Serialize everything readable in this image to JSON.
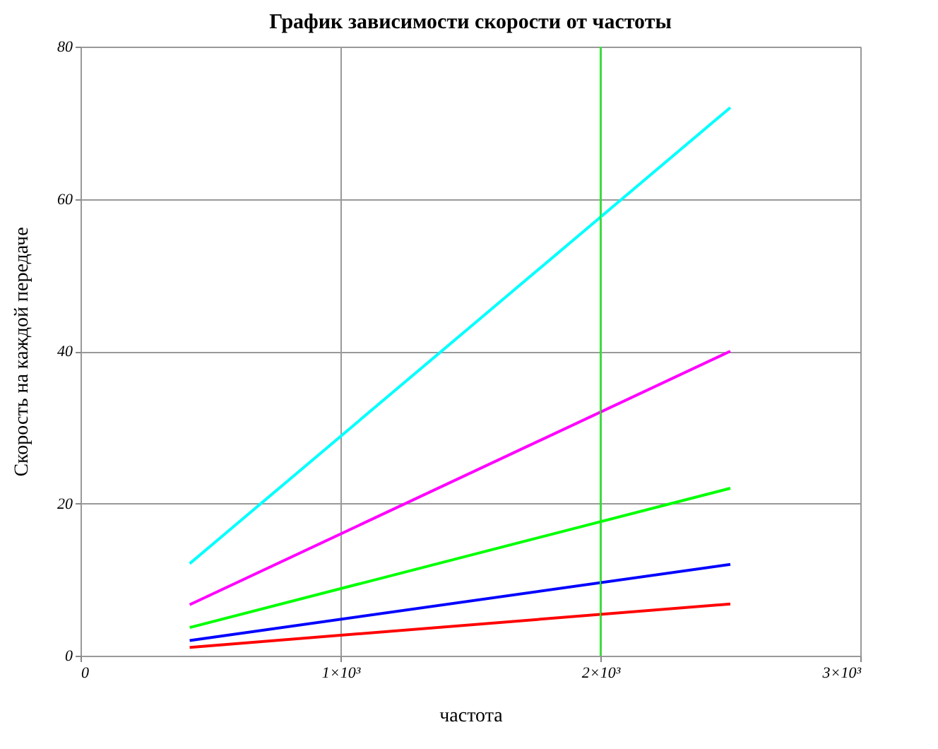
{
  "chart_data": {
    "type": "line",
    "title": "График зависимости скорости от частоты",
    "xlabel": "частота",
    "ylabel": "Скорость на каждой передаче",
    "x": [
      420,
      2500
    ],
    "series": [
      {
        "color": "#00ffff",
        "values": [
          12.1,
          72
        ]
      },
      {
        "color": "#ff00ff",
        "values": [
          6.7,
          40
        ]
      },
      {
        "color": "#00ff00",
        "values": [
          3.7,
          22
        ]
      },
      {
        "color": "#0000ff",
        "values": [
          2.0,
          12
        ]
      },
      {
        "color": "#ff0000",
        "values": [
          1.1,
          6.8
        ]
      }
    ],
    "xlim": [
      0,
      3000
    ],
    "xticks": [
      0,
      {
        "value": 1000,
        "label": "1×10³"
      },
      {
        "value": 2000,
        "label": "2×10³"
      },
      {
        "value": 3000,
        "label": "3×10³"
      }
    ],
    "ylim": [
      0,
      80
    ],
    "yticks": [
      0,
      20,
      40,
      60,
      80
    ],
    "ref_lines": [
      {
        "axis": "x",
        "value": 2000,
        "color": "#00ff00"
      }
    ],
    "grid": true,
    "legend": false,
    "marker": "none",
    "line_style": "solid"
  }
}
